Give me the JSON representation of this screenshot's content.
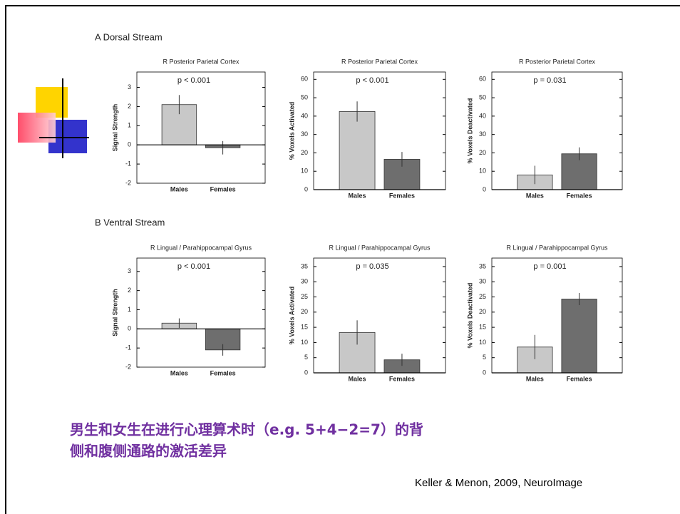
{
  "slide": {
    "section_a": "A  Dorsal Stream",
    "section_b": "B  Ventral Stream",
    "caption": [
      "男生和女生在进行心理算术时（e.g. 5+4−2=7）的背",
      "侧和腹侧通路的激活差异"
    ],
    "citation": "Keller & Menon, 2009, NeuroImage"
  },
  "chart_data": [
    {
      "type": "bar",
      "title": "R Posterior Parietal Cortex",
      "y_label": "Signal Strength",
      "annotation": "p < 0.001",
      "categories": [
        "Males",
        "Females"
      ],
      "values": [
        2.1,
        -0.15
      ],
      "errors": [
        0.5,
        0.35
      ],
      "colors": [
        "#c8c8c8",
        "#6e6e6e"
      ],
      "ylim": [
        -2,
        3.8
      ],
      "yticks": [
        -2,
        -1,
        0,
        1,
        2,
        3
      ]
    },
    {
      "type": "bar",
      "title": "R Posterior Parietal Cortex",
      "y_label": "% Voxels Activated",
      "annotation": "p < 0.001",
      "categories": [
        "Males",
        "Females"
      ],
      "values": [
        42.5,
        16.5
      ],
      "errors": [
        5.5,
        4
      ],
      "colors": [
        "#c8c8c8",
        "#6e6e6e"
      ],
      "ylim": [
        0,
        64
      ],
      "yticks": [
        0,
        10,
        20,
        30,
        40,
        50,
        60
      ]
    },
    {
      "type": "bar",
      "title": "R Posterior Parietal Cortex",
      "y_label": "% Voxels Deactivated",
      "annotation": "p = 0.031",
      "categories": [
        "Males",
        "Females"
      ],
      "values": [
        8,
        19.5
      ],
      "errors": [
        5,
        3.5
      ],
      "colors": [
        "#c8c8c8",
        "#6e6e6e"
      ],
      "ylim": [
        0,
        64
      ],
      "yticks": [
        0,
        10,
        20,
        30,
        40,
        50,
        60
      ]
    },
    {
      "type": "bar",
      "title": "R Lingual / Parahippocampal Gyrus",
      "y_label": "Signal Strength",
      "annotation": "p < 0.001",
      "categories": [
        "Males",
        "Females"
      ],
      "values": [
        0.3,
        -1.1
      ],
      "errors": [
        0.25,
        0.3
      ],
      "colors": [
        "#c8c8c8",
        "#6e6e6e"
      ],
      "ylim": [
        -2,
        3.7
      ],
      "yticks": [
        -2,
        -1,
        0,
        1,
        2,
        3
      ]
    },
    {
      "type": "bar",
      "title": "R Lingual / Parahippocampal Gyrus",
      "y_label": "% Voxels Activated",
      "annotation": "p = 0.035",
      "categories": [
        "Males",
        "Females"
      ],
      "values": [
        13.3,
        4.3
      ],
      "errors": [
        4,
        2
      ],
      "colors": [
        "#c8c8c8",
        "#6e6e6e"
      ],
      "ylim": [
        0,
        37.8
      ],
      "yticks": [
        0,
        5,
        10,
        15,
        20,
        25,
        30,
        35
      ]
    },
    {
      "type": "bar",
      "title": "R Lingual / Parahippocampal Gyrus",
      "y_label": "% Voxels Deactivated",
      "annotation": "p = 0.001",
      "categories": [
        "Males",
        "Females"
      ],
      "values": [
        8.5,
        24.3
      ],
      "errors": [
        4,
        2
      ],
      "colors": [
        "#c8c8c8",
        "#6e6e6e"
      ],
      "ylim": [
        0,
        37.8
      ],
      "yticks": [
        0,
        5,
        10,
        15,
        20,
        25,
        30,
        35
      ]
    }
  ]
}
